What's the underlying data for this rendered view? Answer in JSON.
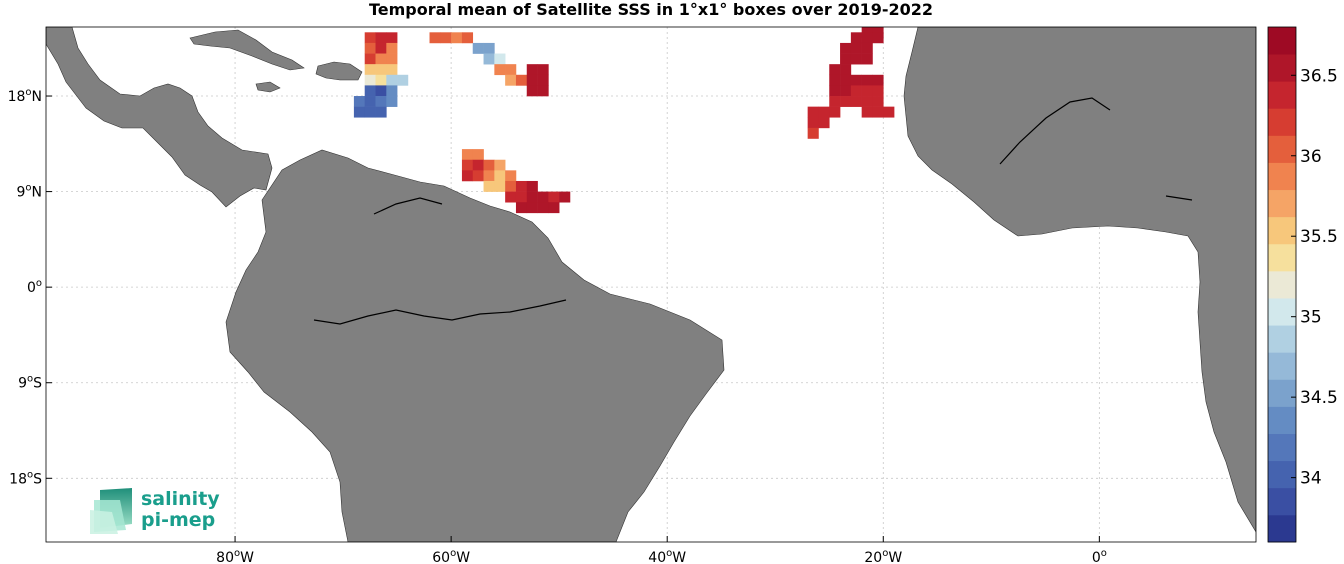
{
  "title": "Temporal mean of Satellite SSS in 1°x1° boxes over 2019-2022",
  "map": {
    "type": "heatmap",
    "lon_range": [
      -97.5,
      14.5
    ],
    "lat_range": [
      -24,
      24.5
    ],
    "x_ticks": [
      {
        "lon": -80,
        "deg": "80",
        "hemi": "W"
      },
      {
        "lon": -60,
        "deg": "60",
        "hemi": "W"
      },
      {
        "lon": -40,
        "deg": "40",
        "hemi": "W"
      },
      {
        "lon": -20,
        "deg": "20",
        "hemi": "W"
      },
      {
        "lon": 0,
        "deg": "0",
        "hemi": ""
      }
    ],
    "y_ticks": [
      {
        "lat": 18,
        "deg": "18",
        "hemi": "N"
      },
      {
        "lat": 9,
        "deg": "9",
        "hemi": "N"
      },
      {
        "lat": 0,
        "deg": "0",
        "hemi": ""
      },
      {
        "lat": -9,
        "deg": "9",
        "hemi": "S"
      },
      {
        "lat": -18,
        "deg": "18",
        "hemi": "S"
      }
    ],
    "grid": true,
    "land_color": "#808080"
  },
  "chart_data": {
    "type": "heatmap",
    "value_name": "SSS",
    "cell_size_deg": 1,
    "clim": [
      33.6,
      36.8
    ],
    "colorbar_ticks": [
      "34",
      "34.5",
      "35",
      "35.5",
      "36",
      "36.5"
    ],
    "colormap": [
      "#2b3990",
      "#3a4fa3",
      "#4563af",
      "#5477ba",
      "#648cc3",
      "#7ba2cc",
      "#95b9d8",
      "#b0d0e2",
      "#d2e8ec",
      "#ebe9d6",
      "#f6e09d",
      "#f7c77b",
      "#f5a466",
      "#f0834f",
      "#e45f3c",
      "#d63d31",
      "#c5252e",
      "#af1629",
      "#9e0a24"
    ],
    "cells": [
      {
        "lon": -67.5,
        "lat": 23.5,
        "v": 36.2
      },
      {
        "lon": -66.5,
        "lat": 23.5,
        "v": 36.3
      },
      {
        "lon": -65.5,
        "lat": 23.5,
        "v": 36.4
      },
      {
        "lon": -67.5,
        "lat": 22.5,
        "v": 36.1
      },
      {
        "lon": -66.5,
        "lat": 22.5,
        "v": 36.3
      },
      {
        "lon": -65.5,
        "lat": 22.5,
        "v": 35.9
      },
      {
        "lon": -67.5,
        "lat": 21.5,
        "v": 36.2
      },
      {
        "lon": -66.5,
        "lat": 21.5,
        "v": 35.9
      },
      {
        "lon": -65.5,
        "lat": 21.5,
        "v": 35.8
      },
      {
        "lon": -67.5,
        "lat": 20.5,
        "v": 35.6
      },
      {
        "lon": -66.5,
        "lat": 20.5,
        "v": 35.6
      },
      {
        "lon": -65.5,
        "lat": 20.5,
        "v": 35.6
      },
      {
        "lon": -67.5,
        "lat": 19.5,
        "v": 35.2
      },
      {
        "lon": -66.5,
        "lat": 19.5,
        "v": 35.4
      },
      {
        "lon": -65.5,
        "lat": 19.5,
        "v": 34.9
      },
      {
        "lon": -64.5,
        "lat": 19.5,
        "v": 34.9
      },
      {
        "lon": -67.5,
        "lat": 18.5,
        "v": 34.0
      },
      {
        "lon": -66.5,
        "lat": 18.5,
        "v": 33.9
      },
      {
        "lon": -65.5,
        "lat": 18.5,
        "v": 34.3
      },
      {
        "lon": -68.5,
        "lat": 17.5,
        "v": 34.2
      },
      {
        "lon": -67.5,
        "lat": 17.5,
        "v": 34.1
      },
      {
        "lon": -66.5,
        "lat": 17.5,
        "v": 34.2
      },
      {
        "lon": -65.5,
        "lat": 17.5,
        "v": 34.3
      },
      {
        "lon": -68.5,
        "lat": 16.5,
        "v": 34.0
      },
      {
        "lon": -67.5,
        "lat": 16.5,
        "v": 34.0
      },
      {
        "lon": -66.5,
        "lat": 16.5,
        "v": 34.1
      },
      {
        "lon": -61.5,
        "lat": 23.5,
        "v": 36.1
      },
      {
        "lon": -60.5,
        "lat": 23.5,
        "v": 36.0
      },
      {
        "lon": -59.5,
        "lat": 23.5,
        "v": 35.8
      },
      {
        "lon": -58.5,
        "lat": 23.5,
        "v": 36.1
      },
      {
        "lon": -57.5,
        "lat": 22.5,
        "v": 34.6
      },
      {
        "lon": -56.5,
        "lat": 22.5,
        "v": 34.6
      },
      {
        "lon": -56.5,
        "lat": 21.5,
        "v": 34.7
      },
      {
        "lon": -55.5,
        "lat": 21.5,
        "v": 35.1
      },
      {
        "lon": -55.5,
        "lat": 20.5,
        "v": 35.9
      },
      {
        "lon": -54.5,
        "lat": 20.5,
        "v": 35.9
      },
      {
        "lon": -52.5,
        "lat": 20.5,
        "v": 36.6
      },
      {
        "lon": -51.5,
        "lat": 20.5,
        "v": 36.5
      },
      {
        "lon": -54.5,
        "lat": 19.5,
        "v": 35.7
      },
      {
        "lon": -53.5,
        "lat": 19.5,
        "v": 36.0
      },
      {
        "lon": -52.5,
        "lat": 19.5,
        "v": 36.6
      },
      {
        "lon": -51.5,
        "lat": 19.5,
        "v": 36.5
      },
      {
        "lon": -52.5,
        "lat": 18.5,
        "v": 36.6
      },
      {
        "lon": -51.5,
        "lat": 18.5,
        "v": 36.5
      },
      {
        "lon": -58.5,
        "lat": 12.5,
        "v": 35.9
      },
      {
        "lon": -57.5,
        "lat": 12.5,
        "v": 35.9
      },
      {
        "lon": -58.5,
        "lat": 11.5,
        "v": 36.2
      },
      {
        "lon": -57.5,
        "lat": 11.5,
        "v": 36.3
      },
      {
        "lon": -56.5,
        "lat": 11.5,
        "v": 36.0
      },
      {
        "lon": -55.5,
        "lat": 11.5,
        "v": 35.7
      },
      {
        "lon": -58.5,
        "lat": 10.5,
        "v": 36.3
      },
      {
        "lon": -57.5,
        "lat": 10.5,
        "v": 36.2
      },
      {
        "lon": -56.5,
        "lat": 10.5,
        "v": 35.8
      },
      {
        "lon": -55.5,
        "lat": 10.5,
        "v": 35.6
      },
      {
        "lon": -54.5,
        "lat": 10.5,
        "v": 35.9
      },
      {
        "lon": -56.5,
        "lat": 9.5,
        "v": 35.5
      },
      {
        "lon": -55.5,
        "lat": 9.5,
        "v": 35.6
      },
      {
        "lon": -54.5,
        "lat": 9.5,
        "v": 36.1
      },
      {
        "lon": -53.5,
        "lat": 9.5,
        "v": 36.3
      },
      {
        "lon": -52.5,
        "lat": 9.5,
        "v": 36.5
      },
      {
        "lon": -54.5,
        "lat": 8.5,
        "v": 36.3
      },
      {
        "lon": -53.5,
        "lat": 8.5,
        "v": 36.3
      },
      {
        "lon": -52.5,
        "lat": 8.5,
        "v": 36.5
      },
      {
        "lon": -51.5,
        "lat": 8.5,
        "v": 36.5
      },
      {
        "lon": -50.5,
        "lat": 8.5,
        "v": 36.3
      },
      {
        "lon": -49.5,
        "lat": 8.5,
        "v": 36.5
      },
      {
        "lon": -53.5,
        "lat": 7.5,
        "v": 36.5
      },
      {
        "lon": -52.5,
        "lat": 7.5,
        "v": 36.5
      },
      {
        "lon": -51.5,
        "lat": 7.5,
        "v": 36.6
      },
      {
        "lon": -50.5,
        "lat": 7.5,
        "v": 36.6
      },
      {
        "lon": -21.5,
        "lat": 24,
        "v": 36.6
      },
      {
        "lon": -20.5,
        "lat": 24,
        "v": 36.6
      },
      {
        "lon": -22.5,
        "lat": 23.5,
        "v": 36.6
      },
      {
        "lon": -21.5,
        "lat": 23.5,
        "v": 36.6
      },
      {
        "lon": -20.5,
        "lat": 23.5,
        "v": 36.6
      },
      {
        "lon": -23.5,
        "lat": 22.5,
        "v": 36.6
      },
      {
        "lon": -22.5,
        "lat": 22.5,
        "v": 36.6
      },
      {
        "lon": -21.5,
        "lat": 22.5,
        "v": 36.6
      },
      {
        "lon": -23.5,
        "lat": 21.5,
        "v": 36.6
      },
      {
        "lon": -22.5,
        "lat": 21.5,
        "v": 36.6
      },
      {
        "lon": -21.5,
        "lat": 21.5,
        "v": 36.6
      },
      {
        "lon": -24.5,
        "lat": 20.5,
        "v": 36.5
      },
      {
        "lon": -23.5,
        "lat": 20.5,
        "v": 36.5
      },
      {
        "lon": -24.5,
        "lat": 19.5,
        "v": 36.5
      },
      {
        "lon": -23.5,
        "lat": 19.5,
        "v": 36.6
      },
      {
        "lon": -22.5,
        "lat": 19.5,
        "v": 36.5
      },
      {
        "lon": -21.5,
        "lat": 19.5,
        "v": 36.5
      },
      {
        "lon": -20.5,
        "lat": 19.5,
        "v": 36.5
      },
      {
        "lon": -24.5,
        "lat": 18.5,
        "v": 36.5
      },
      {
        "lon": -23.5,
        "lat": 18.5,
        "v": 36.5
      },
      {
        "lon": -22.5,
        "lat": 18.5,
        "v": 36.4
      },
      {
        "lon": -21.5,
        "lat": 18.5,
        "v": 36.4
      },
      {
        "lon": -20.5,
        "lat": 18.5,
        "v": 36.4
      },
      {
        "lon": -24.5,
        "lat": 17.5,
        "v": 36.4
      },
      {
        "lon": -23.5,
        "lat": 17.5,
        "v": 36.4
      },
      {
        "lon": -22.5,
        "lat": 17.5,
        "v": 36.3
      },
      {
        "lon": -21.5,
        "lat": 17.5,
        "v": 36.4
      },
      {
        "lon": -20.5,
        "lat": 17.5,
        "v": 36.4
      },
      {
        "lon": -26.5,
        "lat": 16.5,
        "v": 36.3
      },
      {
        "lon": -25.5,
        "lat": 16.5,
        "v": 36.4
      },
      {
        "lon": -24.5,
        "lat": 16.5,
        "v": 36.3
      },
      {
        "lon": -21.5,
        "lat": 16.5,
        "v": 36.3
      },
      {
        "lon": -20.5,
        "lat": 16.5,
        "v": 36.3
      },
      {
        "lon": -19.5,
        "lat": 16.5,
        "v": 36.3
      },
      {
        "lon": -26.5,
        "lat": 15.5,
        "v": 36.3
      },
      {
        "lon": -25.5,
        "lat": 15.5,
        "v": 36.3
      },
      {
        "lon": -26.5,
        "lat": 14.5,
        "v": 36.2
      }
    ]
  },
  "logo": {
    "line1": "salinity",
    "line2": "pi-mep"
  }
}
